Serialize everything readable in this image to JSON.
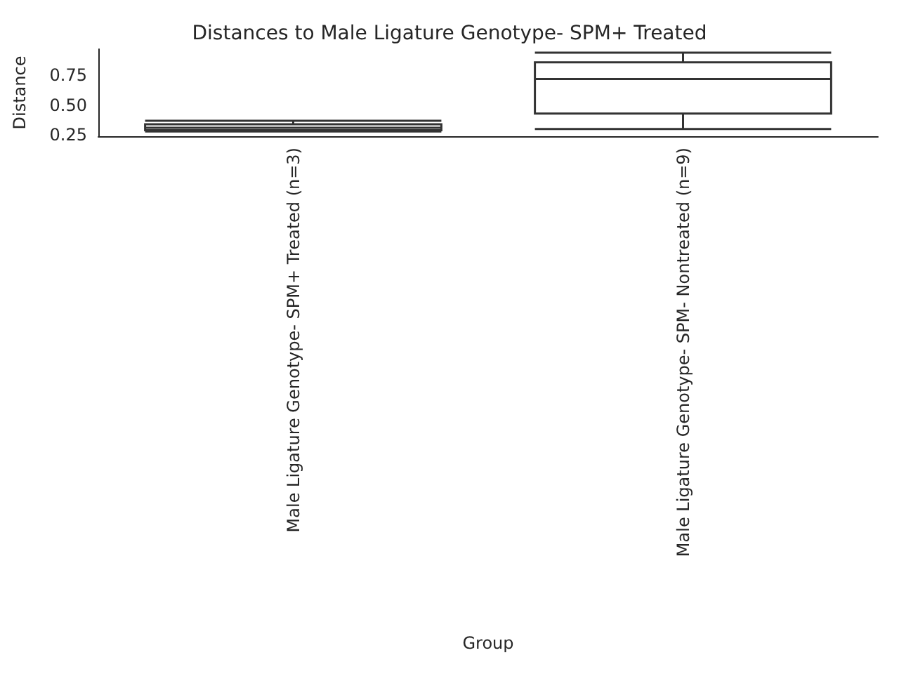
{
  "chart_data": {
    "type": "box",
    "title": "Distances to Male Ligature Genotype- SPM+ Treated",
    "xlabel": "Group",
    "ylabel": "Distance",
    "categories": [
      "Male Ligature Genotype- SPM+ Treated (n=3)",
      "Male Ligature Genotype- SPM- Nontreated (n=9)"
    ],
    "boxes": [
      {
        "low": 0.28,
        "q1": 0.29,
        "median": 0.31,
        "q3": 0.34,
        "high": 0.37
      },
      {
        "low": 0.3,
        "q1": 0.43,
        "median": 0.72,
        "q3": 0.86,
        "high": 0.94
      }
    ],
    "color": "#333333",
    "ylim": [
      0.24,
      0.97
    ],
    "yticks": [
      {
        "value": 0.25,
        "label": "0.25"
      },
      {
        "value": 0.5,
        "label": "0.50"
      },
      {
        "value": 0.75,
        "label": "0.75"
      }
    ],
    "grid": false
  }
}
